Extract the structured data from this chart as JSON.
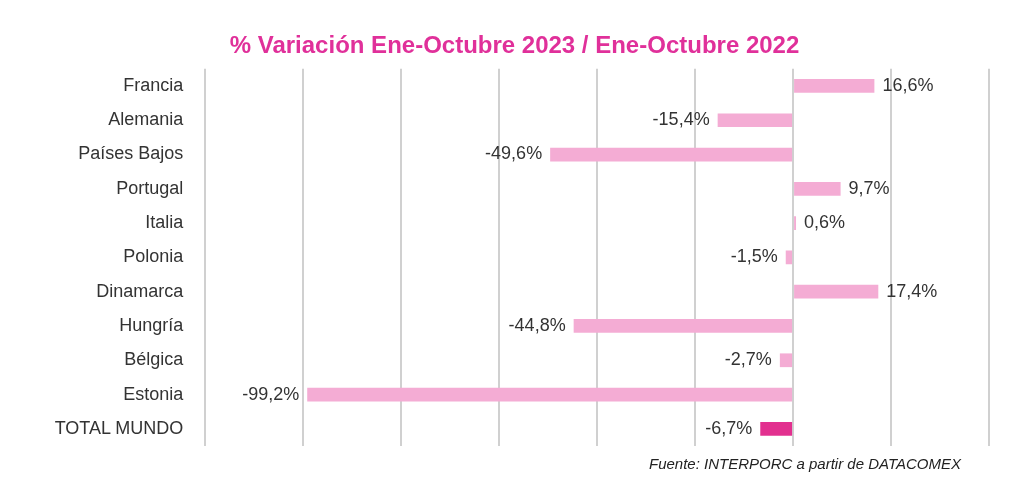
{
  "chart_data": {
    "type": "bar",
    "orientation": "horizontal",
    "title": "% Variación Ene-Octubre 2023 / Ene-Octubre 2022",
    "categories": [
      "Francia",
      "Alemania",
      "Países Bajos",
      "Portugal",
      "Italia",
      "Polonia",
      "Dinamarca",
      "Hungría",
      "Bélgica",
      "Estonia",
      "TOTAL MUNDO"
    ],
    "values": [
      16.6,
      -15.4,
      -49.6,
      9.7,
      0.6,
      -1.5,
      17.4,
      -44.8,
      -2.7,
      -99.2,
      -6.7
    ],
    "value_labels": [
      "16,6%",
      "-15,4%",
      "-49,6%",
      "9,7%",
      "0,6%",
      "-1,5%",
      "17,4%",
      "-44,8%",
      "-2,7%",
      "-99,2%",
      "-6,7%"
    ],
    "colors": [
      "#f4acd4",
      "#f4acd4",
      "#f4acd4",
      "#f4acd4",
      "#f4acd4",
      "#f4acd4",
      "#f4acd4",
      "#f4acd4",
      "#f4acd4",
      "#f4acd4",
      "#e2308f"
    ],
    "xlim": [
      -120,
      40
    ],
    "xticks": [
      {
        "value": -120,
        "label": null
      },
      {
        "value": -100,
        "label": null
      },
      {
        "value": -80,
        "label": null
      },
      {
        "value": -60,
        "label": null
      },
      {
        "value": -40,
        "label": null
      },
      {
        "value": -20,
        "label": null
      },
      {
        "value": 0,
        "label": null
      },
      {
        "value": 20,
        "label": null
      },
      {
        "value": 40,
        "label": null
      }
    ],
    "grid": "x",
    "tick_labels": "y",
    "legend": false,
    "annotations": [
      "Fuente: INTERPORC  a partir de DATACOMEX"
    ]
  }
}
